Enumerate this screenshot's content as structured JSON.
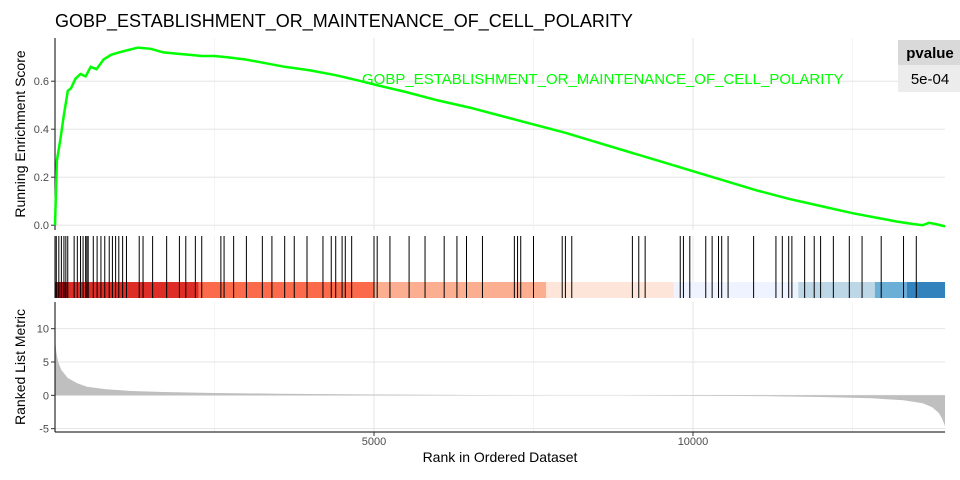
{
  "chart_data": {
    "type": "line",
    "title": "GOBP_ESTABLISHMENT_OR_MAINTENANCE_OF_CELL_POLARITY",
    "xlabel": "Rank in Ordered Dataset",
    "x_ticks": [
      5000,
      10000
    ],
    "xlim": [
      0,
      13950
    ],
    "gene_set_label": "GOBP_ESTABLISHMENT_OR_MAINTENANCE_OF_CELL_POLARITY",
    "line_color": "#00ff00",
    "pvalue_table": {
      "header": "pvalue",
      "value": "5e-04"
    },
    "running_score": {
      "ylabel": "Running Enrichment Score",
      "y_ticks": [
        "0.0",
        "0.2",
        "0.4",
        "0.6"
      ],
      "ylim": [
        -0.02,
        0.78
      ],
      "x": [
        0,
        30,
        80,
        140,
        200,
        250,
        320,
        400,
        480,
        560,
        650,
        760,
        880,
        1000,
        1150,
        1300,
        1500,
        1700,
        1900,
        2100,
        2300,
        2500,
        2700,
        3000,
        3300,
        3600,
        4000,
        4400,
        4800,
        5100,
        5500,
        6000,
        6500,
        7000,
        7500,
        8000,
        8500,
        9000,
        9500,
        10000,
        10500,
        11000,
        11500,
        12000,
        12500,
        12900,
        13200,
        13450,
        13600,
        13700,
        13800,
        13950
      ],
      "y": [
        0.0,
        0.27,
        0.35,
        0.46,
        0.56,
        0.57,
        0.61,
        0.63,
        0.62,
        0.66,
        0.65,
        0.69,
        0.71,
        0.72,
        0.73,
        0.74,
        0.735,
        0.72,
        0.715,
        0.71,
        0.705,
        0.705,
        0.7,
        0.69,
        0.675,
        0.66,
        0.645,
        0.625,
        0.6,
        0.58,
        0.555,
        0.52,
        0.49,
        0.455,
        0.42,
        0.385,
        0.345,
        0.305,
        0.265,
        0.225,
        0.185,
        0.145,
        0.11,
        0.08,
        0.05,
        0.03,
        0.015,
        0.005,
        0.0,
        0.01,
        0.005,
        -0.005
      ]
    },
    "hit_ranks": [
      20,
      60,
      100,
      140,
      170,
      200,
      300,
      350,
      400,
      440,
      480,
      500,
      520,
      600,
      660,
      720,
      780,
      850,
      900,
      950,
      1000,
      1060,
      1120,
      1320,
      1380,
      1530,
      1750,
      1950,
      2050,
      2200,
      2300,
      2600,
      2650,
      2800,
      3000,
      3250,
      3400,
      3600,
      3750,
      3950,
      4200,
      4330,
      4400,
      4500,
      4550,
      4650,
      5000,
      5050,
      5250,
      5550,
      5800,
      6100,
      6300,
      6450,
      6700,
      7200,
      7250,
      7300,
      7500,
      7950,
      8000,
      8100,
      9050,
      9150,
      9250,
      9800,
      9850,
      9950,
      10200,
      10300,
      10400,
      10450,
      10550,
      10950,
      11300,
      11400,
      11500,
      11550,
      11750,
      11900,
      12000,
      12200,
      12450,
      12650,
      12950,
      13300,
      13500
    ],
    "color_band": {
      "segments": [
        {
          "from": 0,
          "to": 200,
          "color": "#a50f15"
        },
        {
          "from": 200,
          "to": 2250,
          "color": "#de2d26"
        },
        {
          "from": 2250,
          "to": 5000,
          "color": "#fb6a4a"
        },
        {
          "from": 5000,
          "to": 7700,
          "color": "#fcae91"
        },
        {
          "from": 7700,
          "to": 9700,
          "color": "#fee5d9"
        },
        {
          "from": 9700,
          "to": 11650,
          "color": "#eff3ff"
        },
        {
          "from": 11650,
          "to": 12850,
          "color": "#bdd7e7"
        },
        {
          "from": 12850,
          "to": 13350,
          "color": "#6baed6"
        },
        {
          "from": 13350,
          "to": 13950,
          "color": "#3182bd"
        }
      ]
    },
    "ranked_metric": {
      "ylabel": "Ranked List Metric",
      "y_ticks": [
        "-5",
        "0",
        "5",
        "10"
      ],
      "ylim": [
        -5.5,
        14
      ],
      "x": [
        0,
        20,
        50,
        100,
        200,
        350,
        500,
        800,
        1200,
        1700,
        2500,
        3500,
        5000,
        6500,
        7800,
        8800,
        8900,
        9900,
        11000,
        12000,
        12800,
        13300,
        13600,
        13750,
        13850,
        13900,
        13950
      ],
      "y": [
        8.5,
        6.5,
        5.0,
        3.8,
        2.6,
        1.8,
        1.3,
        0.9,
        0.65,
        0.5,
        0.35,
        0.25,
        0.12,
        0.05,
        0.02,
        0.0,
        0.0,
        -0.05,
        -0.12,
        -0.25,
        -0.45,
        -0.75,
        -1.2,
        -1.8,
        -2.6,
        -3.4,
        -4.6
      ]
    }
  }
}
